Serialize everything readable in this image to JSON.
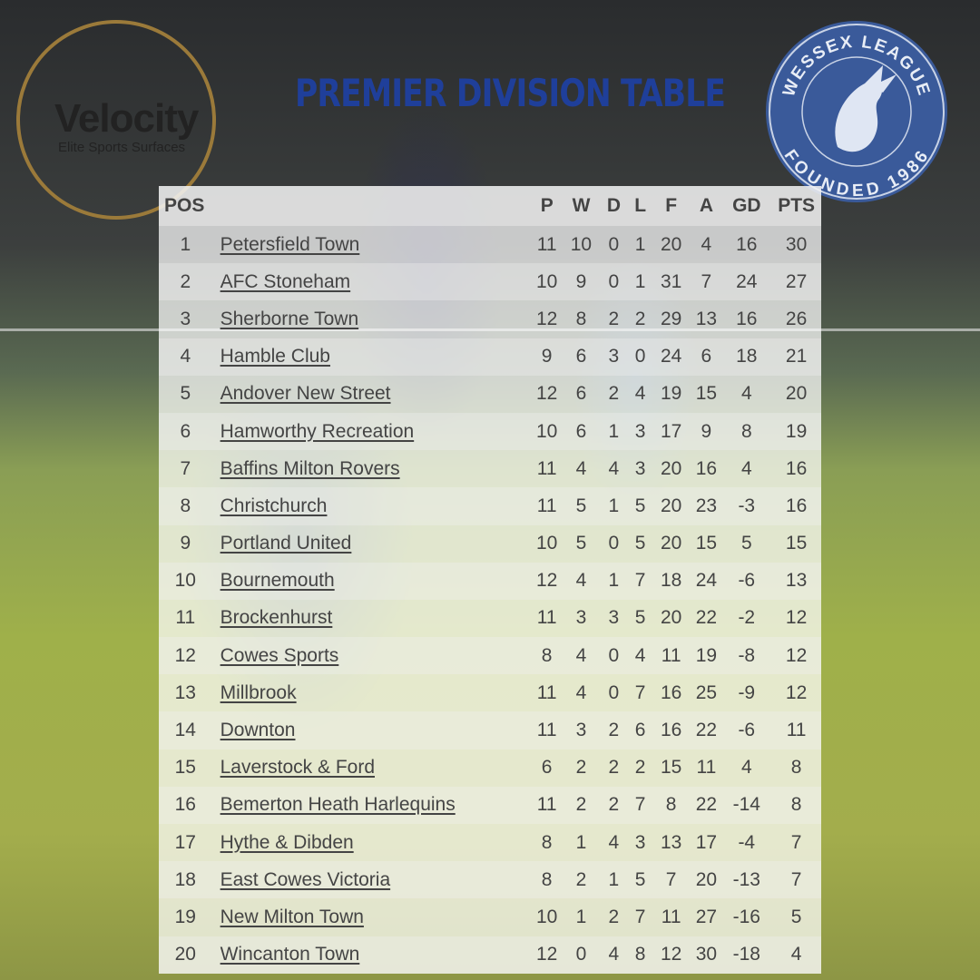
{
  "title": "PREMIER DIVISION TABLE",
  "sponsor_logo": {
    "name": "Velocity",
    "tagline": "Elite Sports Surfaces",
    "ring_color": "#9b7a3a"
  },
  "league_logo": {
    "text_top": "WESSEX LEAGUE",
    "text_bottom": "FOUNDED 1986",
    "color": "#3a5a9a"
  },
  "colors": {
    "title": "#1f3f9a"
  },
  "table": {
    "headers": [
      "POS",
      "",
      "P",
      "W",
      "D",
      "L",
      "F",
      "A",
      "GD",
      "PTS"
    ],
    "rows": [
      [
        "1",
        "Petersfield Town",
        "11",
        "10",
        "0",
        "1",
        "20",
        "4",
        "16",
        "30"
      ],
      [
        "2",
        "AFC Stoneham",
        "10",
        "9",
        "0",
        "1",
        "31",
        "7",
        "24",
        "27"
      ],
      [
        "3",
        "Sherborne Town",
        "12",
        "8",
        "2",
        "2",
        "29",
        "13",
        "16",
        "26"
      ],
      [
        "4",
        "Hamble Club",
        "9",
        "6",
        "3",
        "0",
        "24",
        "6",
        "18",
        "21"
      ],
      [
        "5",
        "Andover New Street",
        "12",
        "6",
        "2",
        "4",
        "19",
        "15",
        "4",
        "20"
      ],
      [
        "6",
        "Hamworthy Recreation",
        "10",
        "6",
        "1",
        "3",
        "17",
        "9",
        "8",
        "19"
      ],
      [
        "7",
        "Baffins Milton Rovers",
        "11",
        "4",
        "4",
        "3",
        "20",
        "16",
        "4",
        "16"
      ],
      [
        "8",
        "Christchurch",
        "11",
        "5",
        "1",
        "5",
        "20",
        "23",
        "-3",
        "16"
      ],
      [
        "9",
        "Portland United",
        "10",
        "5",
        "0",
        "5",
        "20",
        "15",
        "5",
        "15"
      ],
      [
        "10",
        "Bournemouth",
        "12",
        "4",
        "1",
        "7",
        "18",
        "24",
        "-6",
        "13"
      ],
      [
        "11",
        "Brockenhurst",
        "11",
        "3",
        "3",
        "5",
        "20",
        "22",
        "-2",
        "12"
      ],
      [
        "12",
        "Cowes Sports",
        "8",
        "4",
        "0",
        "4",
        "11",
        "19",
        "-8",
        "12"
      ],
      [
        "13",
        "Millbrook",
        "11",
        "4",
        "0",
        "7",
        "16",
        "25",
        "-9",
        "12"
      ],
      [
        "14",
        "Downton",
        "11",
        "3",
        "2",
        "6",
        "16",
        "22",
        "-6",
        "11"
      ],
      [
        "15",
        "Laverstock & Ford",
        "6",
        "2",
        "2",
        "2",
        "15",
        "11",
        "4",
        "8"
      ],
      [
        "16",
        "Bemerton Heath Harlequins",
        "11",
        "2",
        "2",
        "7",
        "8",
        "22",
        "-14",
        "8"
      ],
      [
        "17",
        "Hythe & Dibden",
        "8",
        "1",
        "4",
        "3",
        "13",
        "17",
        "-4",
        "7"
      ],
      [
        "18",
        "East Cowes Victoria",
        "8",
        "2",
        "1",
        "5",
        "7",
        "20",
        "-13",
        "7"
      ],
      [
        "19",
        "New Milton Town",
        "10",
        "1",
        "2",
        "7",
        "11",
        "27",
        "-16",
        "5"
      ],
      [
        "20",
        "Wincanton Town",
        "12",
        "0",
        "4",
        "8",
        "12",
        "30",
        "-18",
        "4"
      ]
    ]
  }
}
